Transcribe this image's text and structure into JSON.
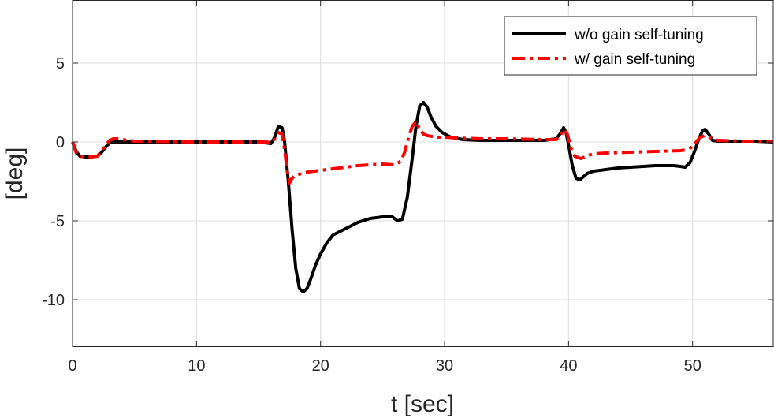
{
  "chart_data": {
    "type": "line",
    "title": "",
    "xlabel": "t [sec]",
    "ylabel": "[deg]",
    "xlim": [
      0,
      56.5
    ],
    "ylim": [
      -13,
      9
    ],
    "xticks": [
      0,
      10,
      20,
      30,
      40,
      50
    ],
    "yticks": [
      -10,
      -5,
      0,
      5
    ],
    "ytick_labels": [
      "-10",
      "-5",
      "0",
      "5"
    ],
    "grid": true,
    "legend_position": "top-right",
    "series": [
      {
        "name": "w/o gain self-tuning",
        "color": "#000000",
        "style": "solid",
        "x": [
          0,
          0.3,
          0.6,
          1,
          1.5,
          2,
          2.3,
          2.7,
          3,
          3.3,
          3.6,
          4,
          5,
          10,
          15,
          15.5,
          16,
          16.3,
          16.6,
          16.9,
          17.1,
          17.4,
          17.7,
          18,
          18.3,
          18.6,
          18.9,
          19.2,
          19.6,
          20,
          20.5,
          21,
          22,
          23,
          24,
          25,
          25.8,
          26.2,
          26.6,
          27,
          27.4,
          27.7,
          28,
          28.3,
          28.6,
          28.9,
          29.3,
          29.8,
          30.5,
          31.5,
          33,
          35,
          38,
          39,
          39.3,
          39.6,
          39.8,
          40,
          40.3,
          40.6,
          40.9,
          41.2,
          41.5,
          42,
          43,
          44,
          45,
          46,
          47,
          48,
          48.5,
          49,
          49.4,
          49.8,
          50.2,
          50.5,
          50.8,
          51,
          51.3,
          51.6,
          52,
          53,
          54,
          55,
          56.5
        ],
        "y": [
          0,
          -0.6,
          -0.9,
          -0.95,
          -0.95,
          -0.9,
          -0.7,
          -0.3,
          -0.05,
          0,
          0,
          0,
          0,
          0,
          0,
          -0.05,
          -0.1,
          0.3,
          1.0,
          0.9,
          0,
          -2.5,
          -5.5,
          -8,
          -9.3,
          -9.5,
          -9.3,
          -8.7,
          -7.8,
          -7.1,
          -6.4,
          -5.9,
          -5.5,
          -5.1,
          -4.85,
          -4.75,
          -4.75,
          -5,
          -4.9,
          -3.5,
          -1,
          1,
          2.3,
          2.5,
          2.2,
          1.6,
          1.0,
          0.6,
          0.3,
          0.15,
          0.1,
          0.1,
          0.1,
          0.2,
          0.5,
          0.9,
          0.6,
          -0.2,
          -1.5,
          -2.3,
          -2.4,
          -2.2,
          -2.0,
          -1.85,
          -1.75,
          -1.65,
          -1.6,
          -1.55,
          -1.5,
          -1.5,
          -1.5,
          -1.55,
          -1.6,
          -1.3,
          -0.5,
          0.2,
          0.7,
          0.8,
          0.5,
          0.1,
          0.05,
          0.05,
          0.05,
          0.05,
          0
        ]
      },
      {
        "name": "w/ gain self-tuning",
        "color": "#ff0000",
        "style": "dash-dot",
        "x": [
          0,
          0.3,
          0.6,
          1,
          1.5,
          2,
          2.3,
          2.7,
          3,
          3.3,
          3.6,
          4,
          4.5,
          5,
          10,
          15,
          15.5,
          16,
          16.3,
          16.6,
          16.9,
          17.1,
          17.3,
          17.5,
          17.7,
          18,
          18.5,
          19,
          20,
          21,
          22,
          23,
          24,
          25,
          26,
          26.5,
          26.8,
          27.1,
          27.4,
          27.7,
          28,
          28.3,
          28.6,
          29,
          29.5,
          30,
          31,
          33,
          35,
          38,
          39,
          39.3,
          39.6,
          39.9,
          40.2,
          40.5,
          40.8,
          41,
          41.3,
          41.6,
          42,
          43,
          45,
          47,
          49,
          49.5,
          50,
          50.3,
          50.6,
          51,
          51.5,
          52,
          54,
          56.5
        ],
        "y": [
          0,
          -0.7,
          -0.9,
          -0.95,
          -0.95,
          -0.9,
          -0.6,
          -0.2,
          0.1,
          0.2,
          0.2,
          0.15,
          0.1,
          0.05,
          0,
          0,
          0,
          -0.05,
          0.2,
          0.6,
          0.5,
          -0.5,
          -1.8,
          -2.6,
          -2.3,
          -2.1,
          -2.0,
          -1.9,
          -1.8,
          -1.7,
          -1.6,
          -1.5,
          -1.45,
          -1.4,
          -1.45,
          -1.2,
          -0.6,
          0.3,
          1.0,
          1.3,
          0.8,
          0.5,
          0.4,
          0.35,
          0.3,
          0.3,
          0.25,
          0.2,
          0.2,
          0.15,
          0.15,
          0.3,
          0.8,
          0.5,
          -0.4,
          -0.9,
          -1.0,
          -1.05,
          -0.95,
          -0.85,
          -0.75,
          -0.7,
          -0.65,
          -0.6,
          -0.55,
          -0.5,
          -0.3,
          0.0,
          0.3,
          0.4,
          0.25,
          0.1,
          0.05,
          0.05
        ]
      }
    ]
  }
}
